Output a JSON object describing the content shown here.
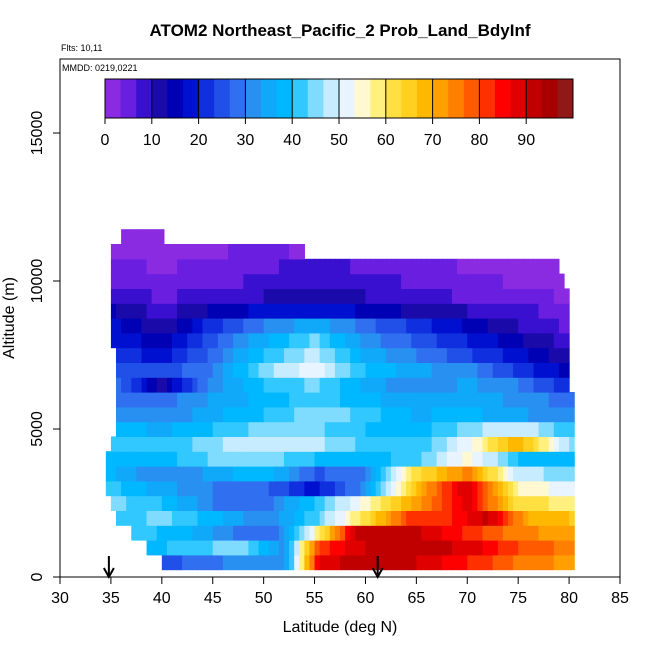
{
  "chart_data": {
    "type": "heatmap",
    "title": "ATOM2 Northeast_Pacific_2 Prob_Land_BdyInf",
    "flights_label": "Flts: 10,11",
    "mmdd_label": "MMDD: 0219,0221",
    "xlabel": "Latitude (deg N)",
    "ylabel": "Altitude (m)",
    "xlim": [
      30,
      85
    ],
    "ylim": [
      0,
      17500
    ],
    "x_ticks": [
      "30",
      "35",
      "40",
      "45",
      "50",
      "55",
      "60",
      "65",
      "70",
      "75",
      "80",
      "85"
    ],
    "y_ticks": [
      "0",
      "5000",
      "10000",
      "15000"
    ],
    "colorbar": {
      "range": [
        0,
        100
      ],
      "tick_labels": [
        "0",
        "10",
        "20",
        "30",
        "40",
        "50",
        "60",
        "70",
        "80",
        "90"
      ],
      "colors": [
        "#8a2be2",
        "#6a1fe0",
        "#3a10d0",
        "#1a0aaa",
        "#0000b4",
        "#0010d0",
        "#1030e0",
        "#2050e8",
        "#3070f0",
        "#2890f0",
        "#10a8f8",
        "#00b8ff",
        "#30c8ff",
        "#80dcff",
        "#c8ecff",
        "#e8f4ff",
        "#fff8d0",
        "#fff080",
        "#ffe040",
        "#ffd020",
        "#ffb800",
        "#ffa000",
        "#ff8000",
        "#ff5a00",
        "#ff3000",
        "#ff0000",
        "#e00000",
        "#c00000",
        "#a80000",
        "#901818"
      ]
    },
    "flight_markers_latitude": [
      34.8,
      61.2
    ],
    "altitude_bins_m": [
      500,
      1000,
      1500,
      2000,
      2500,
      3000,
      3500,
      4000,
      4500,
      5000,
      5500,
      6000,
      6500,
      7000,
      7500,
      8000,
      8500,
      9000,
      9500,
      10000,
      10500,
      11000,
      11500
    ],
    "latitude_range_by_bin": [
      [
        40,
        80.5
      ],
      [
        38.5,
        80.5
      ],
      [
        37,
        80.5
      ],
      [
        35.5,
        80.5
      ],
      [
        35,
        80.5
      ],
      [
        34.5,
        80.5
      ],
      [
        34.5,
        80.5
      ],
      [
        34.5,
        80.5
      ],
      [
        35,
        80.5
      ],
      [
        35.5,
        80.5
      ],
      [
        35.5,
        80.5
      ],
      [
        35.5,
        80.5
      ],
      [
        35.5,
        80
      ],
      [
        35.5,
        80
      ],
      [
        35.5,
        80
      ],
      [
        35,
        80
      ],
      [
        35,
        80
      ],
      [
        35,
        80
      ],
      [
        35,
        80
      ],
      [
        35,
        79.5
      ],
      [
        35,
        79
      ],
      [
        35,
        54
      ],
      [
        36,
        40.2
      ]
    ],
    "values_by_bin": [
      {
        "lat": [
          40,
          44,
          48,
          52,
          55.5,
          60,
          65,
          70.5,
          75,
          80.5
        ],
        "prob": [
          25,
          28,
          32,
          30,
          88,
          93,
          90,
          83,
          76,
          72
        ]
      },
      {
        "lat": [
          38.5,
          43,
          48,
          52,
          55.5,
          60,
          65,
          70.5,
          75,
          80.5
        ],
        "prob": [
          38,
          42,
          45,
          32,
          82,
          90,
          93,
          88,
          80,
          75
        ]
      },
      {
        "lat": [
          37,
          42,
          47,
          51,
          55,
          59,
          64,
          69,
          74,
          80.5
        ],
        "prob": [
          42,
          38,
          30,
          28,
          55,
          90,
          92,
          84,
          76,
          70
        ]
      },
      {
        "lat": [
          35.5,
          40,
          45,
          50,
          55,
          60,
          64,
          68,
          72,
          76,
          80.5
        ],
        "prob": [
          40,
          45,
          38,
          30,
          42,
          62,
          80,
          82,
          91,
          70,
          66
        ]
      },
      {
        "lat": [
          35,
          40,
          45,
          50,
          55,
          60,
          65,
          70,
          75,
          80.5
        ],
        "prob": [
          45,
          40,
          30,
          28,
          40,
          55,
          72,
          88,
          62,
          58
        ]
      },
      {
        "lat": [
          34.5,
          40,
          45,
          50,
          55,
          60,
          65,
          70,
          75,
          80.5
        ],
        "prob": [
          42,
          35,
          30,
          28,
          18,
          32,
          68,
          90,
          55,
          52
        ]
      },
      {
        "lat": [
          34.5,
          40,
          45,
          50,
          55,
          60,
          65,
          70,
          75,
          80.5
        ],
        "prob": [
          38,
          30,
          34,
          40,
          26,
          30,
          62,
          75,
          48,
          45
        ]
      },
      {
        "lat": [
          34.5,
          40,
          45,
          50,
          55,
          60,
          65,
          70,
          75,
          80.5
        ],
        "prob": [
          40,
          38,
          44,
          46,
          40,
          38,
          42,
          55,
          40,
          38
        ]
      },
      {
        "lat": [
          35,
          40,
          45,
          50,
          55,
          60,
          65,
          70,
          75,
          80.5
        ],
        "prob": [
          42,
          40,
          46,
          50,
          48,
          42,
          40,
          52,
          70,
          44
        ]
      },
      {
        "lat": [
          35.5,
          40,
          45,
          50,
          55,
          60,
          65,
          70,
          75,
          80.5
        ],
        "prob": [
          38,
          36,
          40,
          45,
          44,
          40,
          38,
          45,
          50,
          40
        ]
      },
      {
        "lat": [
          35.5,
          40,
          45,
          50,
          55,
          60,
          65,
          70,
          75,
          80.5
        ],
        "prob": [
          32,
          30,
          36,
          40,
          46,
          42,
          36,
          38,
          34,
          30
        ]
      },
      {
        "lat": [
          35.5,
          40,
          45,
          50,
          55,
          60,
          65,
          70,
          75,
          80.5
        ],
        "prob": [
          30,
          28,
          34,
          38,
          42,
          38,
          34,
          36,
          32,
          28
        ]
      },
      {
        "lat": [
          35.5,
          40,
          45,
          50,
          55,
          60,
          65,
          70,
          75,
          80
        ],
        "prob": [
          28,
          12,
          32,
          40,
          44,
          36,
          30,
          34,
          30,
          20
        ]
      },
      {
        "lat": [
          35.5,
          40,
          45,
          50,
          55,
          60,
          65,
          70,
          75,
          80
        ],
        "prob": [
          26,
          24,
          30,
          45,
          52,
          40,
          34,
          32,
          22,
          15
        ]
      },
      {
        "lat": [
          35.5,
          40,
          45,
          50,
          55,
          60,
          65,
          70,
          75,
          80
        ],
        "prob": [
          22,
          18,
          28,
          40,
          48,
          36,
          30,
          24,
          18,
          10
        ]
      },
      {
        "lat": [
          35,
          40,
          45,
          50,
          55,
          60,
          65,
          70,
          75,
          80
        ],
        "prob": [
          20,
          14,
          26,
          36,
          44,
          32,
          26,
          20,
          14,
          8
        ]
      },
      {
        "lat": [
          35,
          40,
          45,
          50,
          55,
          60,
          65,
          70,
          75,
          80
        ],
        "prob": [
          18,
          10,
          22,
          30,
          36,
          28,
          22,
          16,
          10,
          6
        ]
      },
      {
        "lat": [
          35,
          40,
          45,
          50,
          55,
          60,
          65,
          70,
          75,
          80
        ],
        "prob": [
          14,
          8,
          14,
          18,
          20,
          16,
          12,
          10,
          8,
          5
        ]
      },
      {
        "lat": [
          35,
          40,
          45,
          50,
          55,
          60,
          65,
          70,
          75,
          80
        ],
        "prob": [
          10,
          6,
          8,
          10,
          12,
          10,
          8,
          6,
          4,
          3
        ]
      },
      {
        "lat": [
          35,
          40,
          45,
          50,
          55,
          60,
          65,
          70,
          75,
          79.5
        ],
        "prob": [
          6,
          4,
          5,
          8,
          10,
          8,
          6,
          4,
          3,
          2
        ]
      },
      {
        "lat": [
          35,
          40,
          45,
          50,
          55,
          60,
          65,
          70,
          75,
          79
        ],
        "prob": [
          4,
          3,
          4,
          6,
          8,
          6,
          5,
          3,
          2,
          2
        ]
      },
      {
        "lat": [
          35,
          40,
          45,
          50,
          54
        ],
        "prob": [
          3,
          2,
          3,
          4,
          3
        ]
      },
      {
        "lat": [
          36,
          40.2
        ],
        "prob": [
          2,
          2
        ]
      }
    ]
  }
}
